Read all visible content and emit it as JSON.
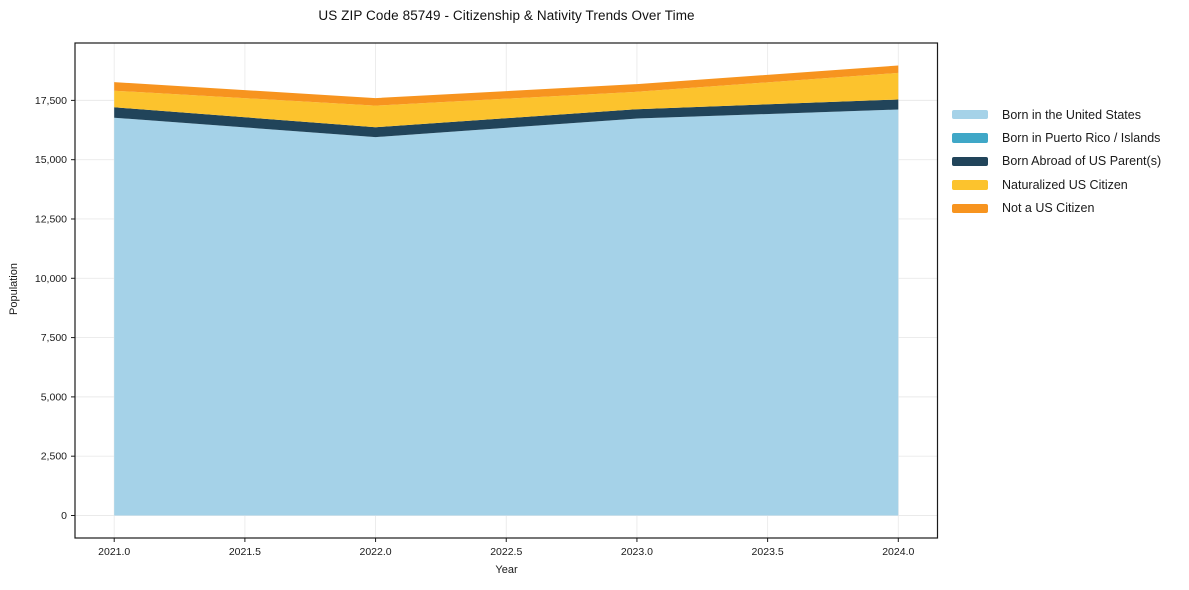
{
  "chart_data": {
    "type": "area",
    "stacked": true,
    "title": "US ZIP Code 85749 - Citizenship & Nativity Trends Over Time",
    "xlabel": "Year",
    "ylabel": "Population",
    "x": [
      2021,
      2022,
      2023,
      2024
    ],
    "series": [
      {
        "name": "Born in the United States",
        "color": "#a5d2e8",
        "values": [
          16770,
          15950,
          16735,
          17115
        ]
      },
      {
        "name": "Born in Puerto Rico / Islands",
        "color": "#3fa7c7",
        "values": [
          0,
          0,
          0,
          0
        ]
      },
      {
        "name": "Born Abroad of US Parent(s)",
        "color": "#21445a",
        "values": [
          440,
          420,
          395,
          420
        ]
      },
      {
        "name": "Naturalized US Citizen",
        "color": "#fcc32d",
        "values": [
          700,
          910,
          730,
          1125
        ]
      },
      {
        "name": "Not a US Citizen",
        "color": "#f7941f",
        "values": [
          360,
          315,
          325,
          310
        ]
      }
    ],
    "totals": [
      18270,
      17595,
      18185,
      18970
    ],
    "xlim": [
      2020.85,
      2024.15
    ],
    "ylim": [
      -949,
      19919
    ],
    "x_ticks": {
      "values": [
        2021.0,
        2021.5,
        2022.0,
        2022.5,
        2023.0,
        2023.5,
        2024.0
      ],
      "labels": [
        "2021.0",
        "2021.5",
        "2022.0",
        "2022.5",
        "2023.0",
        "2023.5",
        "2024.0"
      ]
    },
    "y_ticks": {
      "values": [
        0,
        2500,
        5000,
        7500,
        10000,
        12500,
        15000,
        17500
      ],
      "labels": [
        "0",
        "2,500",
        "5,000",
        "7,500",
        "10,000",
        "12,500",
        "15,000",
        "17,500"
      ]
    },
    "grid": true,
    "legend_position": "outside-right"
  },
  "colors": {
    "background": "#ffffff",
    "grid": "#eaeaea",
    "spine": "#1a1a1a",
    "tick_label": "#1a1a1a"
  }
}
